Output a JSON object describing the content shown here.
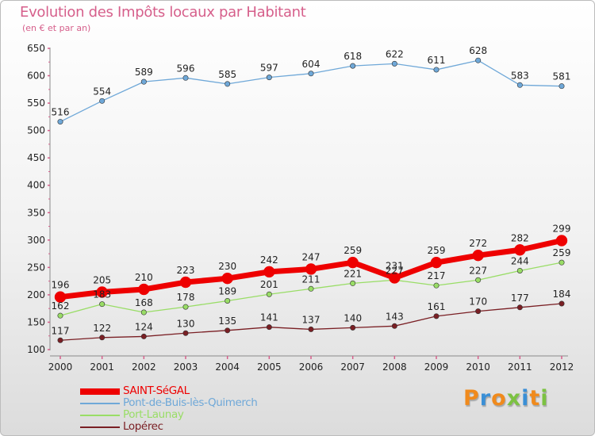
{
  "header": {
    "title": "Evolution des Impôts locaux par Habitant",
    "subtitle": "(en € et par an)"
  },
  "colors": {
    "title": "#d65f8b",
    "axis": "#8a8a8a",
    "tick_label": "#222222"
  },
  "chart_data": {
    "type": "line",
    "title": "Evolution des Impôts locaux par Habitant",
    "subtitle": "(en € et par an)",
    "xlabel": "",
    "ylabel": "",
    "x": [
      "2000",
      "2001",
      "2002",
      "2003",
      "2004",
      "2005",
      "2006",
      "2007",
      "2008",
      "2009",
      "2010",
      "2011",
      "2012"
    ],
    "ylim": [
      100,
      650
    ],
    "yticks": [
      100,
      150,
      200,
      250,
      300,
      350,
      400,
      450,
      500,
      550,
      600,
      650
    ],
    "grid": false,
    "legend_position": "bottom-left",
    "series": [
      {
        "name": "SAINT-SéGAL",
        "color": "#ee0000",
        "width": "thick",
        "values": [
          196,
          205,
          210,
          223,
          230,
          242,
          247,
          259,
          231,
          259,
          272,
          282,
          299
        ]
      },
      {
        "name": "Pont-de-Buis-lès-Quimerch",
        "color": "#6fa8d8",
        "width": "thin",
        "values": [
          516,
          554,
          589,
          596,
          585,
          597,
          604,
          618,
          622,
          611,
          628,
          583,
          581
        ]
      },
      {
        "name": "Port-Launay",
        "color": "#99dd66",
        "width": "thin",
        "values": [
          162,
          183,
          168,
          178,
          189,
          201,
          211,
          221,
          227,
          217,
          227,
          244,
          259
        ]
      },
      {
        "name": "Lopérec",
        "color": "#7a1f24",
        "width": "thin",
        "values": [
          117,
          122,
          124,
          130,
          135,
          141,
          137,
          140,
          143,
          161,
          170,
          177,
          184
        ]
      }
    ]
  },
  "legend": {
    "items": [
      {
        "label": "SAINT-SéGAL",
        "color": "#ee0000"
      },
      {
        "label": "Pont-de-Buis-lès-Quimerch",
        "color": "#6fa8d8"
      },
      {
        "label": "Port-Launay",
        "color": "#99dd66"
      },
      {
        "label": "Lopérec",
        "color": "#7a1f24"
      }
    ]
  },
  "logo": {
    "text": "Proxiti",
    "letters": [
      {
        "ch": "P",
        "color": "#f08a1c"
      },
      {
        "ch": "r",
        "color": "#3a8fd6"
      },
      {
        "ch": "o",
        "color": "#f08a1c"
      },
      {
        "ch": "x",
        "color": "#7cc242"
      },
      {
        "ch": "i",
        "color": "#3a8fd6"
      },
      {
        "ch": "t",
        "color": "#f08a1c"
      },
      {
        "ch": "i",
        "color": "#7cc242"
      }
    ]
  }
}
